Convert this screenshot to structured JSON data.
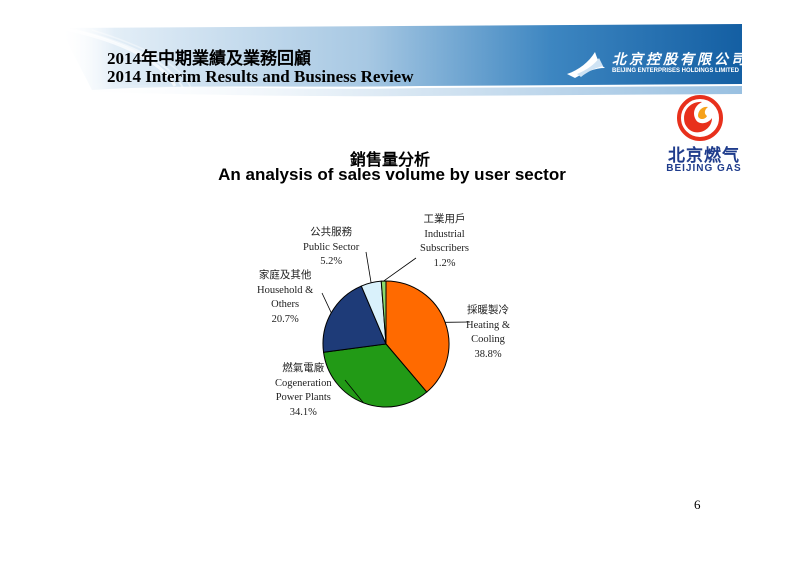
{
  "header": {
    "title_cn": "2014年中期業績及業務回顧",
    "title_en": "2014 Interim Results and Business Review"
  },
  "logos": {
    "bei_cn": "北京控股有限公司",
    "bei_en": "BEIJING ENTERPRISES HOLDINGS LIMITED",
    "gas_cn": "北京燃气",
    "gas_en": "BEIJING GAS"
  },
  "chart_data": {
    "type": "pie",
    "title": "銷售量分析",
    "subtitle": "An analysis of sales volume by user sector",
    "slices": [
      {
        "label_cn": "採暖製冷",
        "label_en": [
          "Heating &",
          "Cooling"
        ],
        "value": 38.8,
        "value_label": "38.8%",
        "color": "#ff6a00"
      },
      {
        "label_cn": "燃氣電廠",
        "label_en": [
          "Cogeneration",
          "Power Plants"
        ],
        "value": 34.1,
        "value_label": "34.1%",
        "color": "#229a16"
      },
      {
        "label_cn": "家庭及其他",
        "label_en": [
          "Household &",
          "Others"
        ],
        "value": 20.7,
        "value_label": "20.7%",
        "color": "#1e3b78"
      },
      {
        "label_cn": "公共服務",
        "label_en": [
          "Public Sector"
        ],
        "value": 5.2,
        "value_label": "5.2%",
        "color": "#d9f1fb"
      },
      {
        "label_cn": "工業用戶",
        "label_en": [
          "Industrial",
          "Subscribers"
        ],
        "value": 1.2,
        "value_label": "1.2%",
        "color": "#8cd96a"
      }
    ]
  },
  "page_number": "6",
  "colors": {
    "banner_blue": "#1e6fb0",
    "banner_light": "#dbeaf5",
    "logo_blue": "#1f3c8c",
    "logo_red": "#e8301c"
  }
}
